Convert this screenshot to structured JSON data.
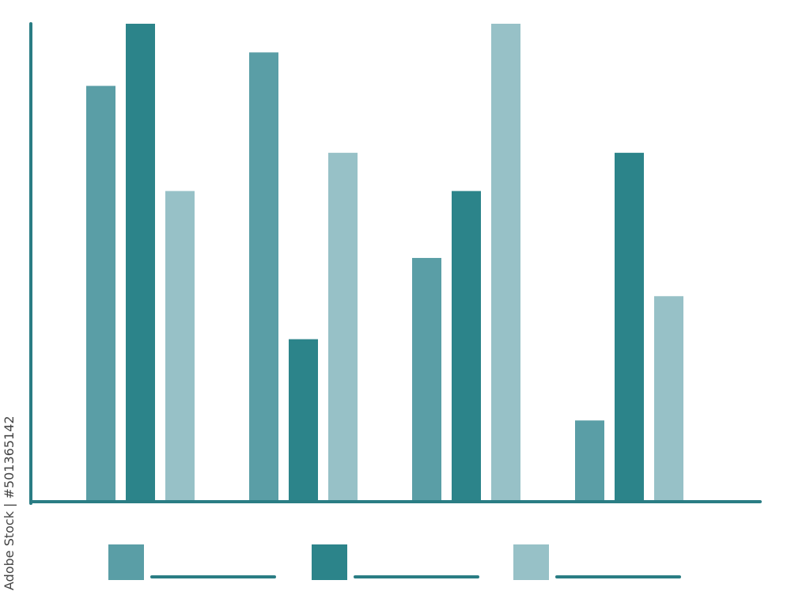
{
  "chart_data": {
    "type": "bar",
    "title": "",
    "xlabel": "",
    "ylabel": "",
    "categories": [
      "",
      "",
      "",
      ""
    ],
    "ylim": [
      0,
      100
    ],
    "grid": false,
    "legend": "bottom",
    "series": [
      {
        "color": "#5a9ea6",
        "values": [
          87,
          94,
          51,
          17
        ]
      },
      {
        "color": "#2c848a",
        "values": [
          100,
          34,
          65,
          73
        ]
      },
      {
        "color": "#97c1c7",
        "values": [
          65,
          73,
          100,
          43
        ]
      }
    ]
  },
  "colors": {
    "axis": "#2a7d84"
  },
  "watermark": "Adobe Stock | #501365142"
}
